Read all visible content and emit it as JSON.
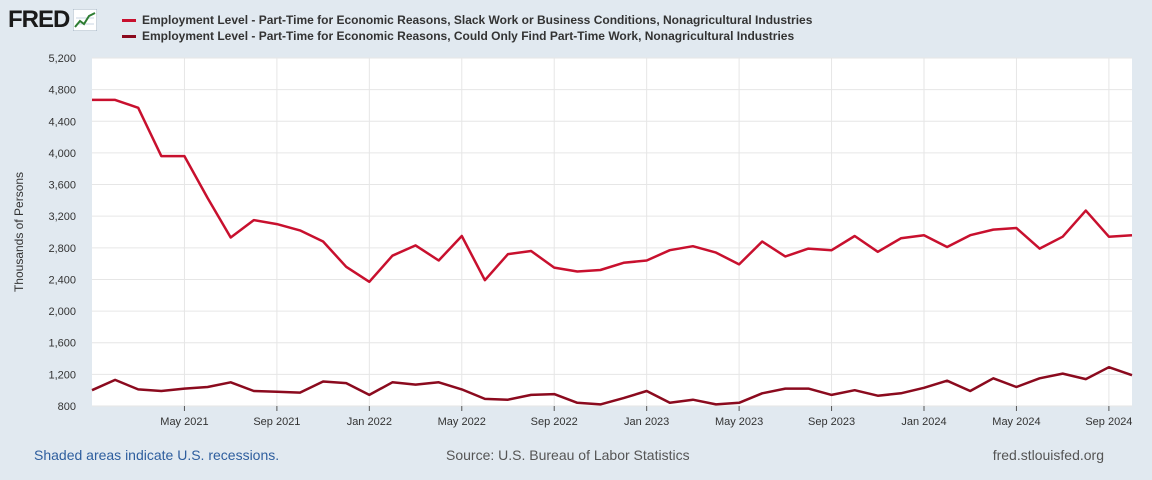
{
  "logo": {
    "text": "FRED"
  },
  "footer": {
    "recessions_note": "Shaded areas indicate U.S. recessions.",
    "source": "Source: U.S. Bureau of Labor Statistics",
    "site": "fred.stlouisfed.org"
  },
  "chart_data": {
    "type": "line",
    "title": "",
    "xlabel": "",
    "ylabel": "Thousands of Persons",
    "ylim": [
      800,
      5200
    ],
    "yticks": [
      800,
      1200,
      1600,
      2000,
      2400,
      2800,
      3200,
      3600,
      4000,
      4400,
      4800,
      5200
    ],
    "ytick_labels": [
      "800",
      "1,200",
      "1,600",
      "2,000",
      "2,400",
      "2,800",
      "3,200",
      "3,600",
      "4,000",
      "4,400",
      "4,800",
      "5,200"
    ],
    "x": [
      "Jan 2021",
      "Feb 2021",
      "Mar 2021",
      "Apr 2021",
      "May 2021",
      "Jun 2021",
      "Jul 2021",
      "Aug 2021",
      "Sep 2021",
      "Oct 2021",
      "Nov 2021",
      "Dec 2021",
      "Jan 2022",
      "Feb 2022",
      "Mar 2022",
      "Apr 2022",
      "May 2022",
      "Jun 2022",
      "Jul 2022",
      "Aug 2022",
      "Sep 2022",
      "Oct 2022",
      "Nov 2022",
      "Dec 2022",
      "Jan 2023",
      "Feb 2023",
      "Mar 2023",
      "Apr 2023",
      "May 2023",
      "Jun 2023",
      "Jul 2023",
      "Aug 2023",
      "Sep 2023",
      "Oct 2023",
      "Nov 2023",
      "Dec 2023",
      "Jan 2024",
      "Feb 2024",
      "Mar 2024",
      "Apr 2024",
      "May 2024",
      "Jun 2024",
      "Jul 2024",
      "Aug 2024",
      "Sep 2024",
      "Oct 2024"
    ],
    "xtick_labels": [
      {
        "label": "May 2021",
        "index": 4
      },
      {
        "label": "Sep 2021",
        "index": 8
      },
      {
        "label": "Jan 2022",
        "index": 12
      },
      {
        "label": "May 2022",
        "index": 16
      },
      {
        "label": "Sep 2022",
        "index": 20
      },
      {
        "label": "Jan 2023",
        "index": 24
      },
      {
        "label": "May 2023",
        "index": 28
      },
      {
        "label": "Sep 2023",
        "index": 32
      },
      {
        "label": "Jan 2024",
        "index": 36
      },
      {
        "label": "May 2024",
        "index": 40
      },
      {
        "label": "Sep 2024",
        "index": 44
      }
    ],
    "series": [
      {
        "name": "Employment Level - Part-Time for Economic Reasons, Slack Work or Business Conditions, Nonagricultural Industries",
        "color": "#c8102e",
        "values": [
          4670,
          4670,
          4570,
          3960,
          3960,
          3430,
          2930,
          3150,
          3100,
          3020,
          2880,
          2560,
          2370,
          2700,
          2830,
          2640,
          2950,
          2390,
          2720,
          2760,
          2550,
          2500,
          2520,
          2610,
          2640,
          2770,
          2820,
          2740,
          2590,
          2880,
          2690,
          2790,
          2770,
          2950,
          2750,
          2920,
          2960,
          2810,
          2960,
          3030,
          3050,
          2790,
          2940,
          3270,
          2940,
          2960
        ]
      },
      {
        "name": "Employment Level - Part-Time for Economic Reasons, Could Only Find Part-Time Work, Nonagricultural Industries",
        "color": "#8b0a1e",
        "values": [
          1000,
          1130,
          1010,
          990,
          1020,
          1040,
          1100,
          990,
          980,
          970,
          1110,
          1090,
          940,
          1100,
          1070,
          1100,
          1010,
          890,
          880,
          940,
          950,
          840,
          820,
          900,
          990,
          840,
          880,
          820,
          840,
          960,
          1020,
          1020,
          940,
          1000,
          930,
          960,
          1030,
          1120,
          990,
          1150,
          1040,
          1150,
          1210,
          1140,
          1290,
          1190
        ]
      }
    ]
  }
}
